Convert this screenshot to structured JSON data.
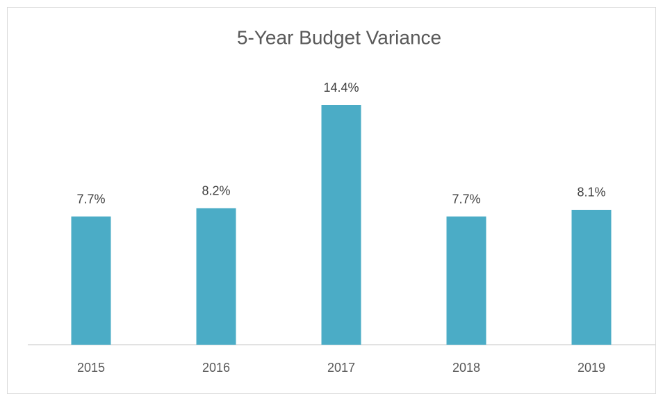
{
  "chart_data": {
    "type": "bar",
    "title": "5-Year Budget Variance",
    "categories": [
      "2015",
      "2016",
      "2017",
      "2018",
      "2019"
    ],
    "values": [
      7.7,
      8.2,
      14.4,
      7.7,
      8.1
    ],
    "value_labels": [
      "7.7%",
      "8.2%",
      "14.4%",
      "7.7%",
      "8.1%"
    ],
    "color": "#4bacc6"
  }
}
